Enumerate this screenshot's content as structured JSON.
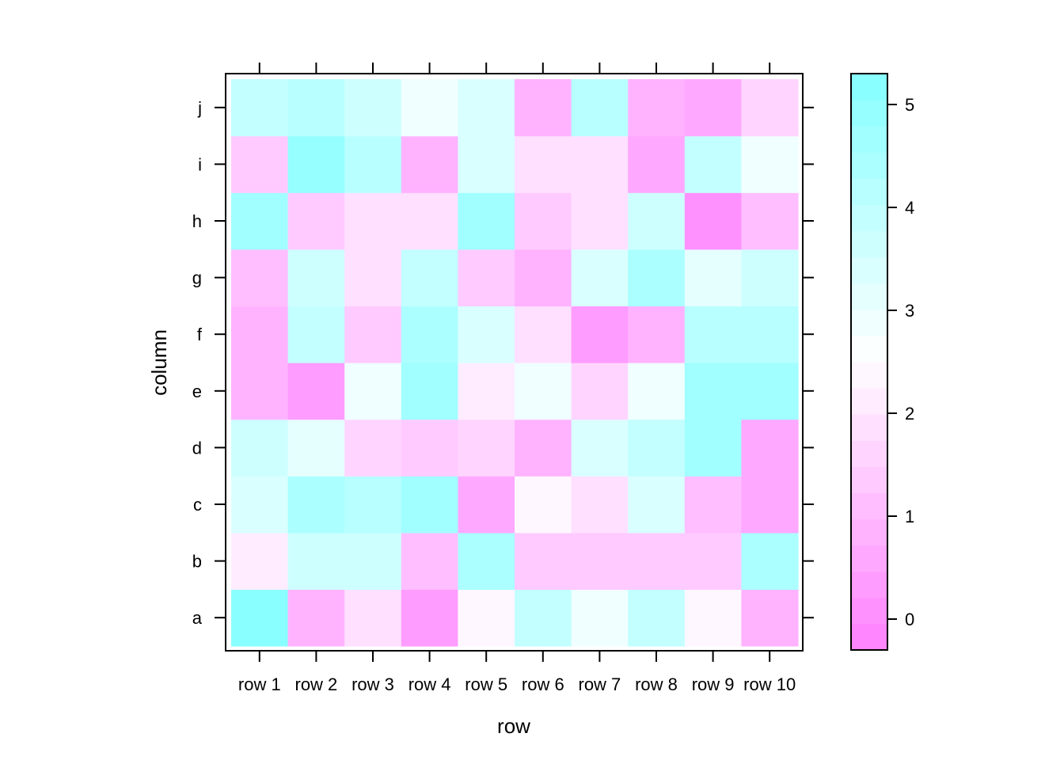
{
  "chart_data": {
    "type": "heatmap",
    "title": "",
    "xlabel": "row",
    "ylabel": "column",
    "x_categories": [
      "row 1",
      "row 2",
      "row 3",
      "row 4",
      "row 5",
      "row 6",
      "row 7",
      "row 8",
      "row 9",
      "row 10"
    ],
    "y_categories": [
      "a",
      "b",
      "c",
      "d",
      "e",
      "f",
      "g",
      "h",
      "i",
      "j"
    ],
    "values": [
      [
        5.2,
        0.8,
        1.7,
        0.4,
        2.2,
        3.8,
        2.8,
        3.8,
        2.2,
        0.8
      ],
      [
        2.0,
        3.5,
        3.5,
        1.0,
        4.2,
        1.2,
        1.2,
        1.4,
        1.4,
        4.2
      ],
      [
        3.2,
        4.3,
        4.0,
        4.6,
        0.6,
        2.3,
        1.9,
        3.3,
        1.0,
        0.6
      ],
      [
        3.6,
        3.1,
        1.6,
        1.3,
        1.6,
        0.7,
        3.4,
        3.9,
        4.5,
        0.6
      ],
      [
        0.7,
        0.4,
        2.8,
        4.6,
        2.0,
        2.9,
        1.6,
        2.9,
        4.6,
        4.6
      ],
      [
        0.7,
        3.9,
        1.3,
        4.4,
        3.2,
        1.9,
        0.4,
        0.8,
        4.1,
        4.1
      ],
      [
        1.0,
        3.5,
        1.8,
        3.7,
        1.2,
        0.7,
        3.2,
        4.4,
        3.0,
        3.6
      ],
      [
        4.6,
        1.3,
        1.7,
        1.7,
        4.6,
        1.4,
        1.7,
        3.6,
        0.1,
        1.0
      ],
      [
        1.3,
        4.8,
        4.1,
        0.9,
        3.3,
        1.7,
        1.7,
        0.6,
        3.8,
        2.8
      ],
      [
        3.8,
        4.1,
        3.6,
        2.8,
        3.2,
        0.8,
        4.0,
        0.9,
        0.6,
        1.5
      ]
    ],
    "colorbar": {
      "min": -0.3,
      "max": 5.3,
      "step": 0.25,
      "ticks": [
        0,
        1,
        2,
        3,
        4,
        5
      ],
      "low_color": "#ff80ff",
      "mid_color": "#ffffff",
      "high_color": "#80ffff",
      "mid_value": 2.5
    },
    "grid": false,
    "legend": "right"
  }
}
